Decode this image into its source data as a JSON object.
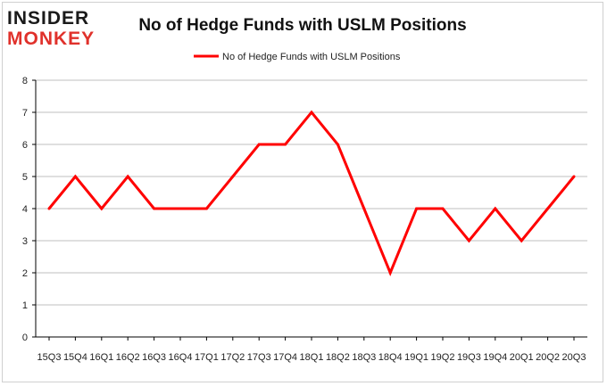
{
  "brand": {
    "line1": "INSIDER",
    "line2": "MONKEY"
  },
  "colors": {
    "series": "#ff0000",
    "grid": "#bfbfbf",
    "axis": "#000000",
    "brand_accent": "#e0312b"
  },
  "chart_data": {
    "type": "line",
    "title": "No of Hedge Funds with USLM Positions",
    "xlabel": "",
    "ylabel": "",
    "ylim": [
      0,
      8
    ],
    "yticks": [
      "0",
      "1",
      "2",
      "3",
      "4",
      "5",
      "6",
      "7",
      "8"
    ],
    "grid": "horizontal",
    "legend": {
      "placement": "top-center"
    },
    "categories": [
      "15Q3",
      "15Q4",
      "16Q1",
      "16Q2",
      "16Q3",
      "16Q4",
      "17Q1",
      "17Q2",
      "17Q3",
      "17Q4",
      "18Q1",
      "18Q2",
      "18Q3",
      "18Q4",
      "19Q1",
      "19Q2",
      "19Q3",
      "19Q4",
      "20Q1",
      "20Q2",
      "20Q3"
    ],
    "series": [
      {
        "name": "No of Hedge Funds with USLM Positions",
        "values": [
          4,
          5,
          4,
          5,
          4,
          4,
          4,
          5,
          6,
          6,
          7,
          6,
          4,
          2,
          4,
          4,
          3,
          4,
          3,
          4,
          5
        ]
      }
    ]
  }
}
